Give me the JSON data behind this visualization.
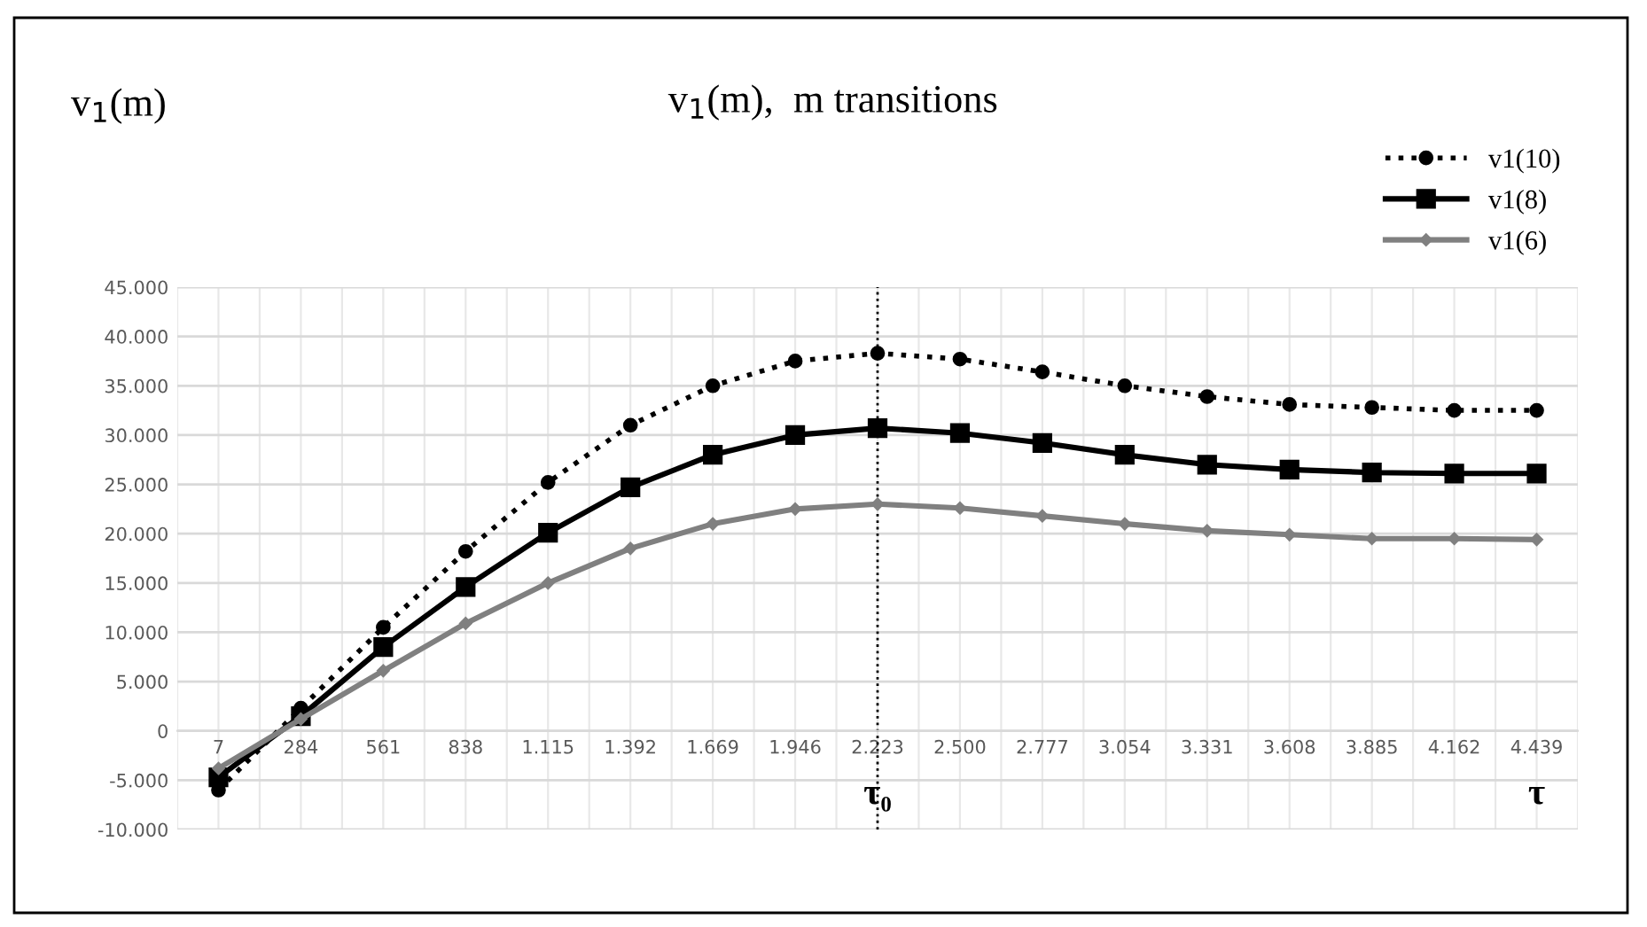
{
  "chart_data": {
    "type": "line",
    "title": "v$_{1}$(m),  m transitions",
    "ylabel": "v$_{1}$(m)",
    "xlabel": "τ",
    "categories": [
      "7",
      "284",
      "561",
      "838",
      "1.115",
      "1.392",
      "1.669",
      "1.946",
      "2.223",
      "2.500",
      "2.777",
      "3.054",
      "3.331",
      "3.608",
      "3.885",
      "4.162",
      "4.439"
    ],
    "series": [
      {
        "name": "v1(10)",
        "color": "#000000",
        "marker": "circle",
        "line_style": "dotted",
        "values": [
          -6000,
          2300,
          10500,
          18200,
          25200,
          31000,
          35000,
          37500,
          38300,
          37700,
          36400,
          35000,
          33900,
          33100,
          32800,
          32500,
          32500
        ]
      },
      {
        "name": "v1(8)",
        "color": "#000000",
        "marker": "square",
        "line_style": "solid",
        "values": [
          -4700,
          1500,
          8500,
          14600,
          20100,
          24700,
          28000,
          30000,
          30700,
          30200,
          29200,
          28000,
          27000,
          26500,
          26200,
          26100,
          26100
        ]
      },
      {
        "name": "v1(6)",
        "color": "#808080",
        "marker": "diamond",
        "line_style": "solid",
        "values": [
          -3800,
          1200,
          6100,
          10900,
          15000,
          18500,
          21000,
          22500,
          23000,
          22600,
          21800,
          21000,
          20300,
          19900,
          19500,
          19500,
          19400
        ]
      }
    ],
    "ylim": [
      -10000,
      45000
    ],
    "yticks": [
      {
        "value": -10000,
        "label": "-10.000"
      },
      {
        "value": -5000,
        "label": "-5.000"
      },
      0,
      {
        "value": 5000,
        "label": "5.000"
      },
      {
        "value": 10000,
        "label": "10.000"
      },
      {
        "value": 15000,
        "label": "15.000"
      },
      {
        "value": 20000,
        "label": "20.000"
      },
      {
        "value": 25000,
        "label": "25.000"
      },
      {
        "value": 30000,
        "label": "30.000"
      },
      {
        "value": 35000,
        "label": "35.000"
      },
      {
        "value": 40000,
        "label": "40.000"
      },
      {
        "value": 45000,
        "label": "45.000"
      }
    ],
    "ref_lines": [
      {
        "axis": "x",
        "value": "2.223",
        "label": "τ₀",
        "line_style": "dotted",
        "color": "#000000"
      }
    ],
    "grid": true,
    "legend": "top right"
  }
}
